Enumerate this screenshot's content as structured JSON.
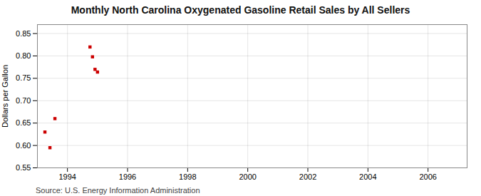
{
  "chart_data": {
    "type": "scatter",
    "title": "Monthly North Carolina Oxygenated Gasoline Retail Sales by All Sellers",
    "ylabel": "Dollars per Gallon",
    "annotation": "Source: U.S. Energy Information Administration",
    "x": [
      1993.25,
      1993.417,
      1993.583,
      1994.75,
      1994.833,
      1994.917,
      1995.0
    ],
    "values": [
      0.63,
      0.595,
      0.66,
      0.82,
      0.798,
      0.77,
      0.764
    ],
    "color": "#cc0000",
    "marker": "square",
    "xlim": [
      1993.0,
      2007.3
    ],
    "ylim": [
      0.55,
      0.87
    ],
    "xticks": [
      1994,
      1996,
      1998,
      2000,
      2002,
      2004,
      2006
    ],
    "yticks": [
      0.55,
      {
        "value": 0.6,
        "label": "0.60"
      },
      0.65,
      {
        "value": 0.7,
        "label": "0.70"
      },
      0.75,
      {
        "value": 0.8,
        "label": "0.80"
      },
      0.85
    ],
    "grid": true
  }
}
